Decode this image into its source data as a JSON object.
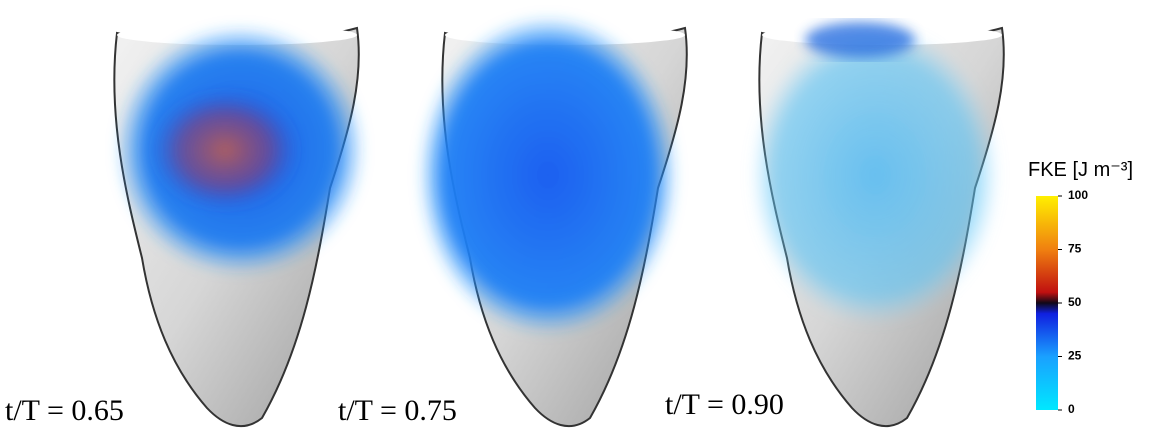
{
  "panels": [
    {
      "label": "t/T = 0.65"
    },
    {
      "label": "t/T = 0.75"
    },
    {
      "label": "t/T = 0.90"
    }
  ],
  "colorbar": {
    "label": "FKE [J m⁻³]",
    "lim": [
      0,
      100
    ],
    "ticks": [
      0,
      25,
      50,
      75,
      100
    ]
  }
}
